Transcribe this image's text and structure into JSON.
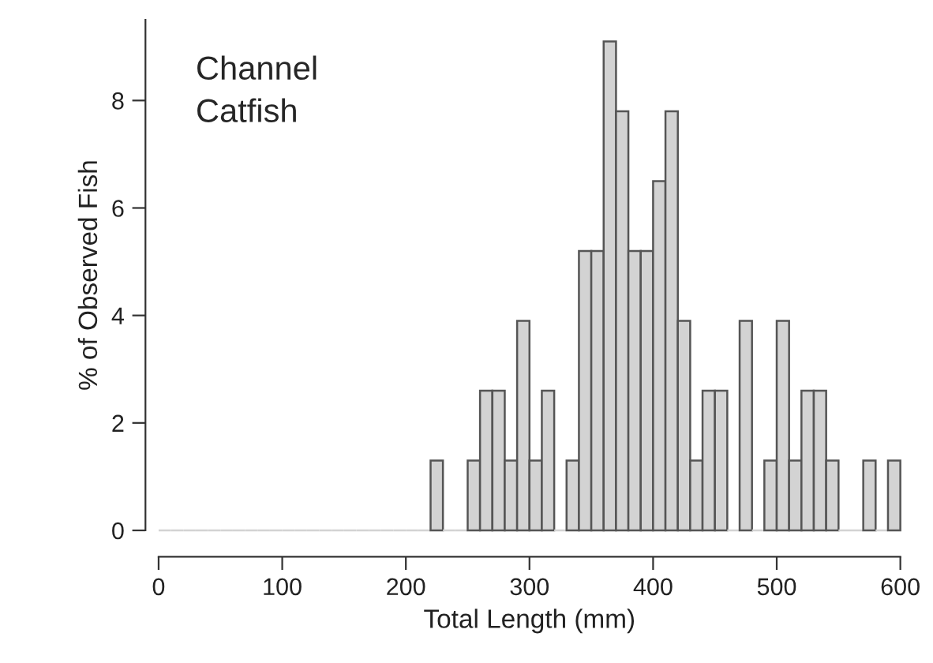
{
  "chart_data": {
    "type": "histogram",
    "xlabel": "Total Length (mm)",
    "ylabel": "% of Observed Fish",
    "annotations": [
      "Channel\nCatfish"
    ],
    "bins": [
      0,
      10,
      20,
      30,
      40,
      50,
      60,
      70,
      80,
      90,
      100,
      110,
      120,
      130,
      140,
      150,
      160,
      170,
      180,
      190,
      200,
      210,
      220,
      230,
      240,
      250,
      260,
      270,
      280,
      290,
      300,
      310,
      320,
      330,
      340,
      350,
      360,
      370,
      380,
      390,
      400,
      410,
      420,
      430,
      440,
      450,
      460,
      470,
      480,
      490,
      500,
      510,
      520,
      530,
      540,
      550,
      560,
      570,
      580,
      590,
      600
    ],
    "values": [
      0,
      0,
      0,
      0,
      0,
      0,
      0,
      0,
      0,
      0,
      0,
      0,
      0,
      0,
      0,
      0,
      0,
      0,
      0,
      0,
      0,
      0,
      1.3,
      0,
      0,
      1.3,
      2.6,
      2.6,
      1.3,
      3.9,
      1.3,
      2.6,
      0,
      1.3,
      5.2,
      5.2,
      9.1,
      7.8,
      5.2,
      5.2,
      6.5,
      7.8,
      3.9,
      1.3,
      2.6,
      2.6,
      0,
      3.9,
      0,
      1.3,
      3.9,
      1.3,
      2.6,
      2.6,
      1.3,
      0,
      0,
      1.3,
      0,
      1.3
    ],
    "color": "#d3d3d3",
    "xlim": [
      0,
      600
    ],
    "ylim": [
      0,
      9.5
    ],
    "xticks": [
      0,
      100,
      200,
      300,
      400,
      500,
      600
    ],
    "yticks": [
      0,
      2,
      4,
      6,
      8
    ],
    "grid": false
  }
}
